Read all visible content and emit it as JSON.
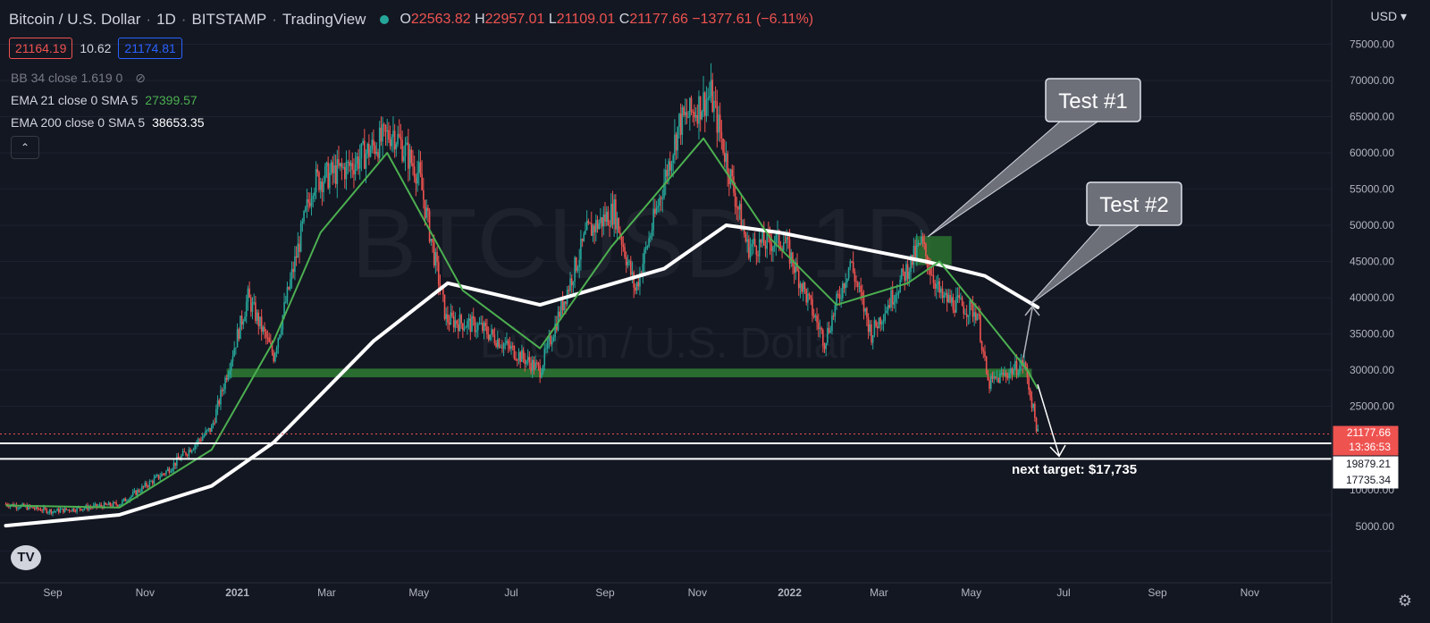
{
  "header": {
    "symbol_name": "Bitcoin / U.S. Dollar",
    "interval": "1D",
    "exchange": "BITSTAMP",
    "platform": "TradingView",
    "ohlc": {
      "o_label": "O",
      "o": "22563.82",
      "h_label": "H",
      "h": "22957.01",
      "l_label": "L",
      "l": "21109.01",
      "c_label": "C",
      "c": "21177.66",
      "change": "−1377.61 (−6.11%)"
    }
  },
  "quote": {
    "bid": "21164.19",
    "spread": "10.62",
    "ask": "21174.81"
  },
  "indicators": {
    "bb": {
      "label": "BB 34 close 1.619 0"
    },
    "ema21": {
      "label": "EMA 21 close 0 SMA 5",
      "value": "27399.57"
    },
    "ema200": {
      "label": "EMA 200 close 0 SMA 5",
      "value": "38653.35"
    }
  },
  "currency": "USD",
  "watermark": {
    "ticker": "BTCUSD, 1D",
    "name": "Bitcoin / U.S. Dollar"
  },
  "price_labels": {
    "last": "21177.66",
    "countdown": "13:36:53",
    "level_1": "19879.21",
    "level_2": "17735.34"
  },
  "annotations": {
    "test1": "Test #1",
    "test2": "Test #2",
    "target": "next target: $17,735"
  },
  "colors": {
    "background": "#131722",
    "up": "#26a69a",
    "down": "#ef5350",
    "ema21": "#4caf50",
    "ema200": "#ffffff",
    "support_zone": "#2e7d32"
  },
  "chart_data": {
    "type": "candlestick",
    "x_axis_labels": [
      "Sep",
      "Nov",
      "2021",
      "Mar",
      "May",
      "Jul",
      "Sep",
      "Nov",
      "2022",
      "Mar",
      "May",
      "Jul",
      "Sep",
      "Nov"
    ],
    "y_axis_labels": [
      "75000.00",
      "70000.00",
      "65000.00",
      "60000.00",
      "55000.00",
      "50000.00",
      "45000.00",
      "40000.00",
      "35000.00",
      "30000.00",
      "25000.00",
      "10000.00",
      "5000.00"
    ],
    "ylim": [
      0,
      78000
    ],
    "price_path": [
      [
        "2020-08-01",
        11500
      ],
      [
        "2020-09-01",
        10500
      ],
      [
        "2020-10-15",
        11500
      ],
      [
        "2020-11-15",
        16000
      ],
      [
        "2020-12-15",
        22000
      ],
      [
        "2021-01-08",
        40000
      ],
      [
        "2021-01-25",
        32000
      ],
      [
        "2021-02-20",
        56000
      ],
      [
        "2021-03-15",
        58000
      ],
      [
        "2021-04-14",
        63000
      ],
      [
        "2021-05-01",
        57000
      ],
      [
        "2021-05-19",
        37000
      ],
      [
        "2021-06-10",
        36000
      ],
      [
        "2021-07-20",
        30000
      ],
      [
        "2021-08-20",
        49000
      ],
      [
        "2021-09-07",
        52000
      ],
      [
        "2021-09-21",
        41000
      ],
      [
        "2021-10-20",
        64000
      ],
      [
        "2021-11-10",
        68000
      ],
      [
        "2021-12-04",
        47000
      ],
      [
        "2021-12-28",
        48000
      ],
      [
        "2022-01-24",
        34000
      ],
      [
        "2022-02-10",
        45000
      ],
      [
        "2022-02-24",
        35000
      ],
      [
        "2022-03-29",
        47500
      ],
      [
        "2022-04-11",
        40000
      ],
      [
        "2022-05-05",
        38000
      ],
      [
        "2022-05-12",
        28000
      ],
      [
        "2022-06-05",
        31000
      ],
      [
        "2022-06-14",
        21177
      ]
    ],
    "ema21": [
      [
        "2020-08-01",
        11300
      ],
      [
        "2020-10-15",
        11000
      ],
      [
        "2020-12-15",
        19000
      ],
      [
        "2021-01-25",
        34000
      ],
      [
        "2021-02-25",
        49000
      ],
      [
        "2021-04-10",
        60000
      ],
      [
        "2021-05-30",
        41000
      ],
      [
        "2021-07-20",
        33000
      ],
      [
        "2021-09-05",
        47000
      ],
      [
        "2021-11-05",
        62000
      ],
      [
        "2021-12-20",
        48000
      ],
      [
        "2022-02-01",
        39000
      ],
      [
        "2022-03-20",
        42000
      ],
      [
        "2022-04-10",
        45000
      ],
      [
        "2022-05-15",
        36000
      ],
      [
        "2022-06-07",
        30000
      ],
      [
        "2022-06-14",
        27399
      ]
    ],
    "ema200": [
      [
        "2020-08-01",
        8500
      ],
      [
        "2020-10-15",
        10000
      ],
      [
        "2020-12-15",
        14000
      ],
      [
        "2021-01-25",
        20000
      ],
      [
        "2021-04-01",
        34000
      ],
      [
        "2021-05-20",
        42000
      ],
      [
        "2021-07-20",
        39000
      ],
      [
        "2021-10-10",
        44000
      ],
      [
        "2021-11-20",
        50000
      ],
      [
        "2021-12-25",
        49000
      ],
      [
        "2022-04-01",
        45000
      ],
      [
        "2022-05-10",
        43000
      ],
      [
        "2022-06-14",
        38653
      ]
    ],
    "support_zone": {
      "low": 29000,
      "high": 30200,
      "from": "2020-12-25",
      "to": "2022-06-10"
    },
    "test_zone": {
      "low": 44500,
      "high": 48500,
      "from": "2022-03-25",
      "to": "2022-04-18"
    },
    "horizontal_levels": [
      19879.21,
      17735.34
    ]
  }
}
